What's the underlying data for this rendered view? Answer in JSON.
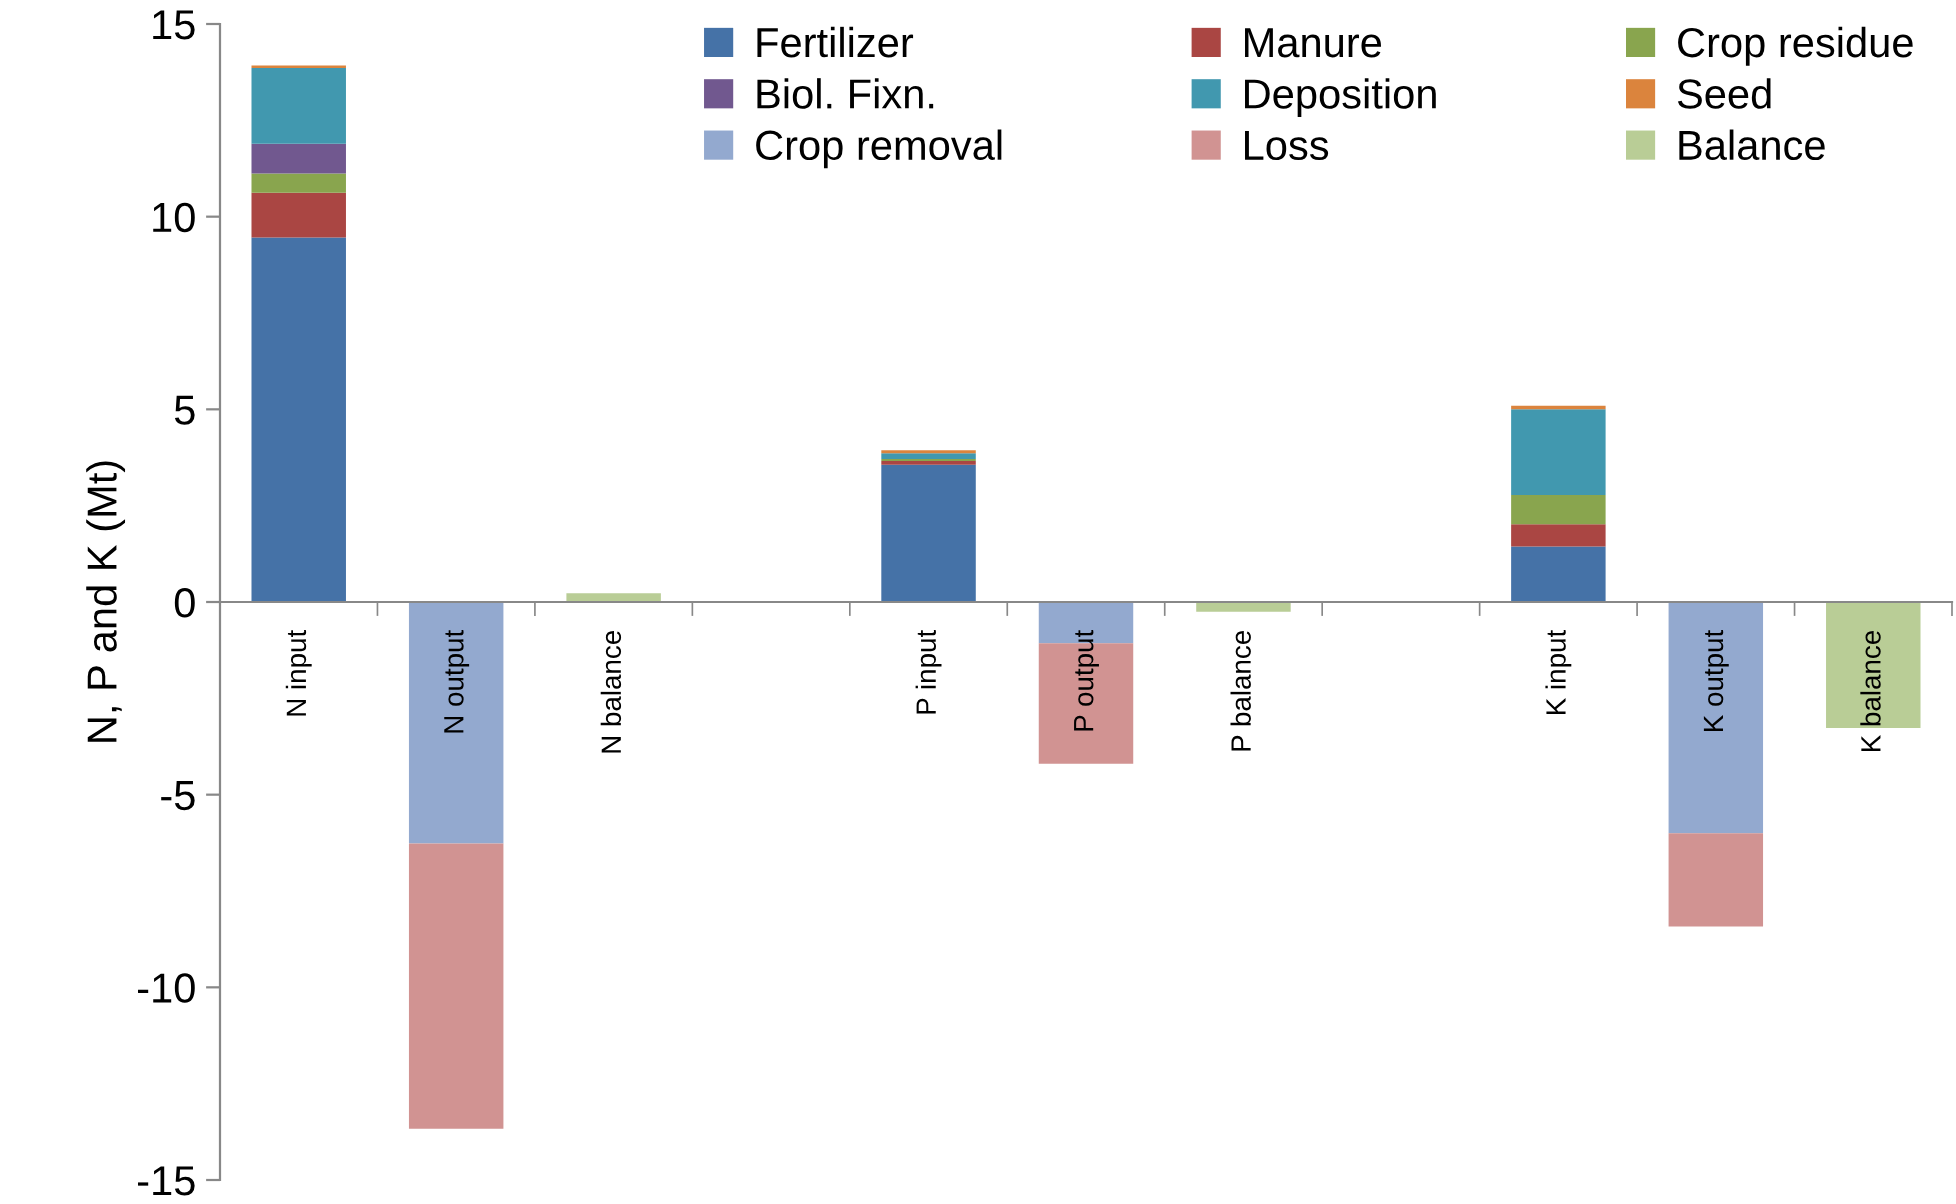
{
  "chart_data": {
    "type": "bar",
    "stacked": true,
    "ylabel": "N, P and K (Mt)",
    "categories": [
      "N input",
      "N output",
      "N balance",
      null,
      "P input",
      "P output",
      "P balance",
      null,
      "K input",
      "K output",
      "K balance"
    ],
    "series": [
      {
        "name": "Fertilizer",
        "color": "#4572a7",
        "values": [
          9.46,
          null,
          null,
          null,
          3.56,
          null,
          null,
          null,
          1.44,
          null,
          null
        ]
      },
      {
        "name": "Manure",
        "color": "#aa4643",
        "values": [
          1.16,
          null,
          null,
          null,
          0.1,
          null,
          null,
          null,
          0.58,
          null,
          null
        ]
      },
      {
        "name": "Crop residue",
        "color": "#89a54e",
        "values": [
          0.5,
          null,
          null,
          null,
          0.05,
          null,
          null,
          null,
          0.76,
          null,
          null
        ]
      },
      {
        "name": "Biol. Fixn.",
        "color": "#71588f",
        "values": [
          0.77,
          null,
          null,
          null,
          null,
          null,
          null,
          null,
          null,
          null,
          null
        ]
      },
      {
        "name": "Deposition",
        "color": "#4198af",
        "values": [
          1.97,
          null,
          null,
          null,
          0.15,
          null,
          null,
          null,
          2.22,
          null,
          null
        ]
      },
      {
        "name": "Seed",
        "color": "#db843d",
        "values": [
          0.06,
          null,
          null,
          null,
          0.08,
          null,
          null,
          null,
          0.09,
          null,
          null
        ]
      },
      {
        "name": "Crop removal",
        "color": "#93a9cf",
        "values": [
          null,
          -6.27,
          null,
          null,
          null,
          -1.07,
          null,
          null,
          null,
          -6.0,
          null
        ]
      },
      {
        "name": "Loss",
        "color": "#d19392",
        "values": [
          null,
          -7.4,
          null,
          null,
          null,
          -3.13,
          null,
          null,
          null,
          -2.42,
          null
        ]
      },
      {
        "name": "Balance",
        "color": "#b9cd96",
        "values": [
          null,
          null,
          0.23,
          null,
          null,
          null,
          -0.25,
          null,
          null,
          null,
          -3.27
        ]
      }
    ],
    "ylim": [
      -15,
      15
    ],
    "yticks": [
      -15,
      -10,
      -5,
      0,
      5,
      10,
      15
    ],
    "grid": false,
    "legend": "top right"
  }
}
